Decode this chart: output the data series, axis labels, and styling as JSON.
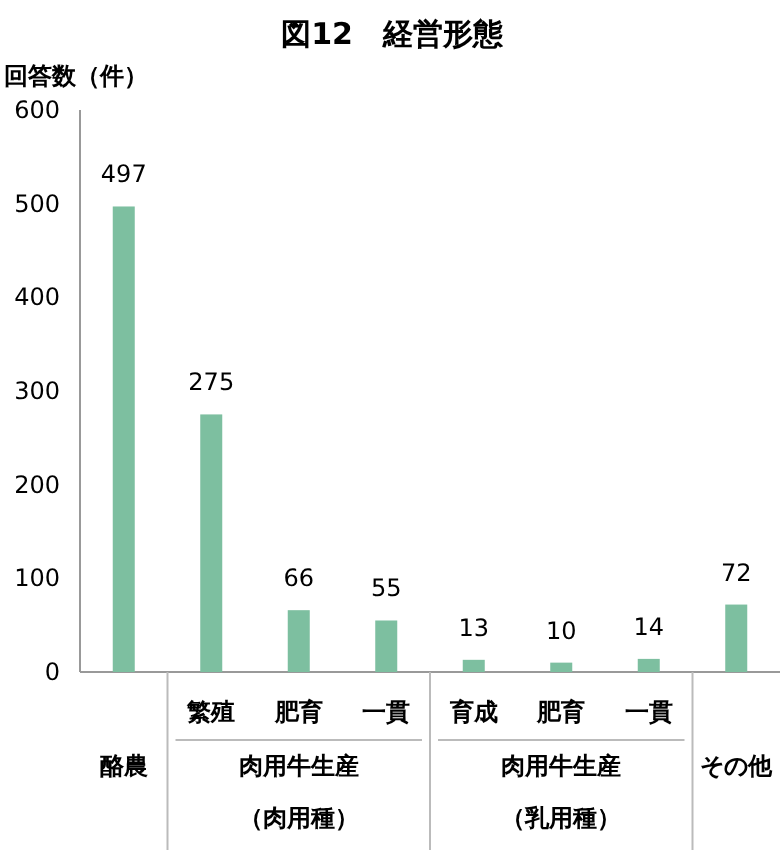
{
  "chart_data": {
    "type": "bar",
    "title": "図12　経営形態",
    "ylabel": "回答数（件）",
    "categories": [
      null,
      "繁殖",
      "肥育",
      "一貫",
      "育成",
      "肥育",
      "一貫",
      null
    ],
    "values": [
      497,
      275,
      66,
      55,
      13,
      10,
      14,
      72
    ],
    "color": "#7dbfa0",
    "ylim": [
      0,
      600
    ],
    "yticks": [
      0,
      100,
      200,
      300,
      400,
      500,
      600
    ],
    "data_labels": true,
    "grid": false,
    "annotations": [
      "酪農",
      "肉用牛生産",
      "（肉用種）",
      "肉用牛生産",
      "（乳用種）",
      "その他"
    ]
  }
}
